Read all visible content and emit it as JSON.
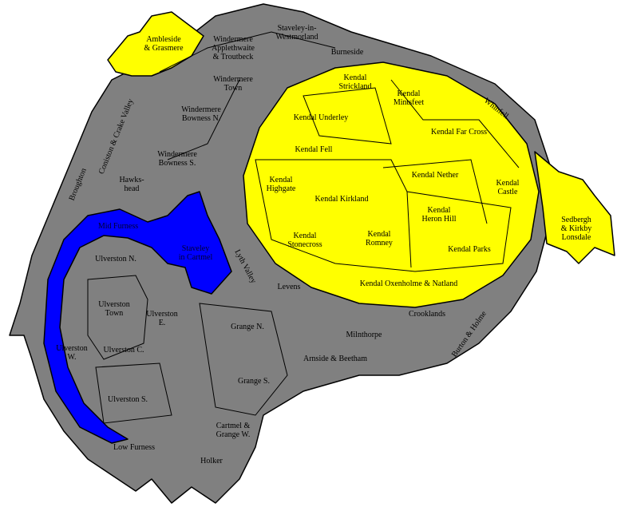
{
  "regions": [
    {
      "lines": [
        "Ambleside",
        "& Grasmere"
      ]
    },
    {
      "lines": [
        "Windermere",
        "Applethwaite",
        "& Troutbeck"
      ]
    },
    {
      "lines": [
        "Staveley-in-",
        "Westmorland"
      ]
    },
    {
      "lines": [
        "Burneside"
      ]
    },
    {
      "lines": [
        "Windermere",
        "Town"
      ]
    },
    {
      "lines": [
        "Kendal",
        "Strickland"
      ]
    },
    {
      "lines": [
        "Kendal",
        "Mintsfeet"
      ]
    },
    {
      "lines": [
        "Windermere",
        "Bowness N."
      ]
    },
    {
      "lines": [
        "Kendal Underley"
      ]
    },
    {
      "lines": [
        "Whinfell"
      ]
    },
    {
      "lines": [
        "Coniston & Crake Valley"
      ]
    },
    {
      "lines": [
        "Kendal Far Cross"
      ]
    },
    {
      "lines": [
        "Kendal Fell"
      ]
    },
    {
      "lines": [
        "Windermere",
        "Bowness S."
      ]
    },
    {
      "lines": [
        "Hawks-",
        "head"
      ]
    },
    {
      "lines": [
        "Broughton"
      ]
    },
    {
      "lines": [
        "Kendal Nether"
      ]
    },
    {
      "lines": [
        "Kendal",
        "Highgate"
      ]
    },
    {
      "lines": [
        "Kendal",
        "Castle"
      ]
    },
    {
      "lines": [
        "Kendal Kirkland"
      ]
    },
    {
      "lines": [
        "Kendal",
        "Heron Hill"
      ]
    },
    {
      "lines": [
        "Sedbergh",
        "& Kirkby",
        "Lonsdale"
      ]
    },
    {
      "lines": [
        "Mid Furness"
      ]
    },
    {
      "lines": [
        "Staveley",
        "in Cartmel"
      ]
    },
    {
      "lines": [
        "Kendal",
        "Stonecross"
      ]
    },
    {
      "lines": [
        "Kendal",
        "Romney"
      ]
    },
    {
      "lines": [
        "Kendal Parks"
      ]
    },
    {
      "lines": [
        "Ulverston N."
      ]
    },
    {
      "lines": [
        "Lyth Valley"
      ]
    },
    {
      "lines": [
        "Kendal Oxenholme & Natland"
      ]
    },
    {
      "lines": [
        "Levens"
      ]
    },
    {
      "lines": [
        "Ulverston",
        "Town"
      ]
    },
    {
      "lines": [
        "Ulverston",
        "E."
      ]
    },
    {
      "lines": [
        "Crooklands"
      ]
    },
    {
      "lines": [
        "Grange N."
      ]
    },
    {
      "lines": [
        "Burton & Holme"
      ]
    },
    {
      "lines": [
        "Milnthorpe"
      ]
    },
    {
      "lines": [
        "Ulverston C."
      ]
    },
    {
      "lines": [
        "Ulverston",
        "W."
      ]
    },
    {
      "lines": [
        "Arnside & Beetham"
      ]
    },
    {
      "lines": [
        "Grange S."
      ]
    },
    {
      "lines": [
        "Ulverston S."
      ]
    },
    {
      "lines": [
        "Cartmel &",
        "Grange W."
      ]
    },
    {
      "lines": [
        "Low Furness"
      ]
    },
    {
      "lines": [
        "Holker"
      ]
    }
  ]
}
